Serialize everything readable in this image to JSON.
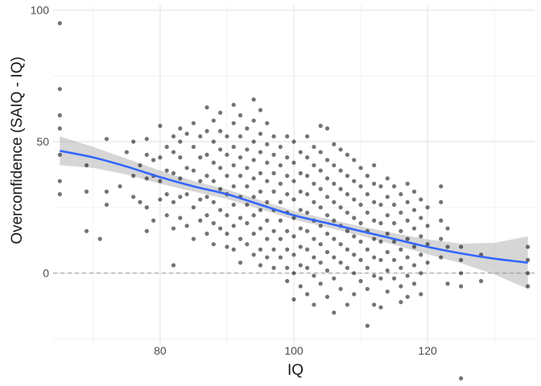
{
  "chart_data": {
    "type": "scatter",
    "title": "",
    "xlabel": "IQ",
    "ylabel": "Overconfidence (SAIQ - IQ)",
    "xlim": [
      64,
      136
    ],
    "ylim": [
      -27,
      102
    ],
    "x_ticks": [
      80,
      100,
      120
    ],
    "x_tick_labels": [
      "80",
      "100",
      "120"
    ],
    "y_ticks": [
      0,
      50,
      100
    ],
    "y_tick_labels": [
      "0",
      "50",
      "100"
    ],
    "grid": true,
    "reference_line": {
      "y": 0,
      "style": "dashed"
    },
    "point_color": "#000000",
    "point_opacity": 0.55,
    "smooth_line_color": "#3366FF",
    "ribbon_color": "#999999",
    "points": [
      [
        65,
        95
      ],
      [
        65,
        70
      ],
      [
        65,
        60
      ],
      [
        65,
        55
      ],
      [
        65,
        45
      ],
      [
        65,
        35
      ],
      [
        65,
        30
      ],
      [
        69,
        41
      ],
      [
        69,
        31
      ],
      [
        69,
        16
      ],
      [
        71,
        13
      ],
      [
        72,
        51
      ],
      [
        72,
        31
      ],
      [
        72,
        26
      ],
      [
        74,
        33
      ],
      [
        75,
        46
      ],
      [
        76,
        50
      ],
      [
        76,
        37
      ],
      [
        76,
        29
      ],
      [
        77,
        41
      ],
      [
        77,
        27
      ],
      [
        78,
        51
      ],
      [
        78,
        45
      ],
      [
        78,
        36
      ],
      [
        78,
        25
      ],
      [
        78,
        16
      ],
      [
        79,
        43
      ],
      [
        79,
        37
      ],
      [
        79,
        20
      ],
      [
        80,
        56
      ],
      [
        80,
        44
      ],
      [
        80,
        35
      ],
      [
        80,
        28
      ],
      [
        81,
        48
      ],
      [
        81,
        39
      ],
      [
        81,
        30
      ],
      [
        81,
        22
      ],
      [
        82,
        52
      ],
      [
        82,
        46
      ],
      [
        82,
        38
      ],
      [
        82,
        27
      ],
      [
        82,
        17
      ],
      [
        82,
        3
      ],
      [
        83,
        55
      ],
      [
        83,
        50
      ],
      [
        83,
        44
      ],
      [
        83,
        36
      ],
      [
        83,
        29
      ],
      [
        83,
        21
      ],
      [
        84,
        53
      ],
      [
        84,
        40
      ],
      [
        84,
        30
      ],
      [
        84,
        18
      ],
      [
        85,
        57
      ],
      [
        85,
        48
      ],
      [
        85,
        39
      ],
      [
        85,
        25
      ],
      [
        85,
        13
      ],
      [
        86,
        52
      ],
      [
        86,
        44
      ],
      [
        86,
        35
      ],
      [
        86,
        28
      ],
      [
        86,
        20
      ],
      [
        87,
        63
      ],
      [
        87,
        54
      ],
      [
        87,
        45
      ],
      [
        87,
        37
      ],
      [
        87,
        29
      ],
      [
        87,
        22
      ],
      [
        87,
        15
      ],
      [
        88,
        58
      ],
      [
        88,
        50
      ],
      [
        88,
        42
      ],
      [
        88,
        35
      ],
      [
        88,
        27
      ],
      [
        88,
        19
      ],
      [
        88,
        11
      ],
      [
        89,
        61
      ],
      [
        89,
        54
      ],
      [
        89,
        47
      ],
      [
        89,
        40
      ],
      [
        89,
        32
      ],
      [
        89,
        24
      ],
      [
        89,
        17
      ],
      [
        90,
        52
      ],
      [
        90,
        45
      ],
      [
        90,
        37
      ],
      [
        90,
        30
      ],
      [
        90,
        22
      ],
      [
        90,
        15
      ],
      [
        90,
        10
      ],
      [
        91,
        64
      ],
      [
        91,
        57
      ],
      [
        91,
        48
      ],
      [
        91,
        41
      ],
      [
        91,
        33
      ],
      [
        91,
        26
      ],
      [
        91,
        18
      ],
      [
        91,
        9
      ],
      [
        92,
        60
      ],
      [
        92,
        52
      ],
      [
        92,
        44
      ],
      [
        92,
        37
      ],
      [
        92,
        29
      ],
      [
        92,
        21
      ],
      [
        92,
        13
      ],
      [
        92,
        4
      ],
      [
        93,
        55
      ],
      [
        93,
        47
      ],
      [
        93,
        40
      ],
      [
        93,
        33
      ],
      [
        93,
        26
      ],
      [
        93,
        19
      ],
      [
        93,
        11
      ],
      [
        94,
        66
      ],
      [
        94,
        58
      ],
      [
        94,
        50
      ],
      [
        94,
        43
      ],
      [
        94,
        36
      ],
      [
        94,
        29
      ],
      [
        94,
        22
      ],
      [
        94,
        15
      ],
      [
        94,
        7
      ],
      [
        95,
        62
      ],
      [
        95,
        53
      ],
      [
        95,
        46
      ],
      [
        95,
        38
      ],
      [
        95,
        31
      ],
      [
        95,
        24
      ],
      [
        95,
        17
      ],
      [
        95,
        9
      ],
      [
        95,
        3
      ],
      [
        96,
        57
      ],
      [
        96,
        49
      ],
      [
        96,
        42
      ],
      [
        96,
        35
      ],
      [
        96,
        27
      ],
      [
        96,
        20
      ],
      [
        96,
        13
      ],
      [
        96,
        6
      ],
      [
        97,
        52
      ],
      [
        97,
        45
      ],
      [
        97,
        38
      ],
      [
        97,
        31
      ],
      [
        97,
        24
      ],
      [
        97,
        16
      ],
      [
        97,
        9
      ],
      [
        97,
        2
      ],
      [
        98,
        48
      ],
      [
        98,
        41
      ],
      [
        98,
        34
      ],
      [
        98,
        27
      ],
      [
        98,
        20
      ],
      [
        98,
        13
      ],
      [
        98,
        6
      ],
      [
        99,
        52
      ],
      [
        99,
        44
      ],
      [
        99,
        37
      ],
      [
        99,
        30
      ],
      [
        99,
        23
      ],
      [
        99,
        16
      ],
      [
        99,
        9
      ],
      [
        99,
        2
      ],
      [
        99,
        -3
      ],
      [
        100,
        50
      ],
      [
        100,
        42
      ],
      [
        100,
        35
      ],
      [
        100,
        28
      ],
      [
        100,
        21
      ],
      [
        100,
        14
      ],
      [
        100,
        7
      ],
      [
        100,
        0
      ],
      [
        100,
        -10
      ],
      [
        101,
        46
      ],
      [
        101,
        38
      ],
      [
        101,
        31
      ],
      [
        101,
        24
      ],
      [
        101,
        17
      ],
      [
        101,
        10
      ],
      [
        101,
        3
      ],
      [
        101,
        -5
      ],
      [
        102,
        52
      ],
      [
        102,
        44
      ],
      [
        102,
        37
      ],
      [
        102,
        30
      ],
      [
        102,
        23
      ],
      [
        102,
        16
      ],
      [
        102,
        9
      ],
      [
        102,
        2
      ],
      [
        102,
        -8
      ],
      [
        103,
        48
      ],
      [
        103,
        41
      ],
      [
        103,
        34
      ],
      [
        103,
        27
      ],
      [
        103,
        20
      ],
      [
        103,
        13
      ],
      [
        103,
        6
      ],
      [
        103,
        -1
      ],
      [
        103,
        -12
      ],
      [
        104,
        56
      ],
      [
        104,
        46
      ],
      [
        104,
        39
      ],
      [
        104,
        32
      ],
      [
        104,
        25
      ],
      [
        104,
        18
      ],
      [
        104,
        11
      ],
      [
        104,
        4
      ],
      [
        104,
        -4
      ],
      [
        105,
        55
      ],
      [
        105,
        43
      ],
      [
        105,
        36
      ],
      [
        105,
        29
      ],
      [
        105,
        22
      ],
      [
        105,
        15
      ],
      [
        105,
        8
      ],
      [
        105,
        1
      ],
      [
        105,
        -9
      ],
      [
        106,
        49
      ],
      [
        106,
        41
      ],
      [
        106,
        34
      ],
      [
        106,
        27
      ],
      [
        106,
        20
      ],
      [
        106,
        13
      ],
      [
        106,
        6
      ],
      [
        106,
        -2
      ],
      [
        106,
        -15
      ],
      [
        107,
        47
      ],
      [
        107,
        39
      ],
      [
        107,
        32
      ],
      [
        107,
        25
      ],
      [
        107,
        18
      ],
      [
        107,
        11
      ],
      [
        107,
        4
      ],
      [
        107,
        -6
      ],
      [
        108,
        45
      ],
      [
        108,
        37
      ],
      [
        108,
        30
      ],
      [
        108,
        23
      ],
      [
        108,
        16
      ],
      [
        108,
        9
      ],
      [
        108,
        2
      ],
      [
        108,
        -12
      ],
      [
        109,
        43
      ],
      [
        109,
        35
      ],
      [
        109,
        28
      ],
      [
        109,
        21
      ],
      [
        109,
        14
      ],
      [
        109,
        7
      ],
      [
        109,
        0
      ],
      [
        109,
        -8
      ],
      [
        110,
        40
      ],
      [
        110,
        33
      ],
      [
        110,
        26
      ],
      [
        110,
        19
      ],
      [
        110,
        12
      ],
      [
        110,
        5
      ],
      [
        110,
        -3
      ],
      [
        111,
        37
      ],
      [
        111,
        30
      ],
      [
        111,
        23
      ],
      [
        111,
        16
      ],
      [
        111,
        9
      ],
      [
        111,
        2
      ],
      [
        111,
        -6
      ],
      [
        111,
        -20
      ],
      [
        112,
        41
      ],
      [
        112,
        34
      ],
      [
        112,
        27
      ],
      [
        112,
        20
      ],
      [
        112,
        13
      ],
      [
        112,
        6
      ],
      [
        112,
        -1
      ],
      [
        112,
        -12
      ],
      [
        113,
        33
      ],
      [
        113,
        26
      ],
      [
        113,
        19
      ],
      [
        113,
        12
      ],
      [
        113,
        5
      ],
      [
        113,
        -2
      ],
      [
        113,
        -13
      ],
      [
        114,
        36
      ],
      [
        114,
        29
      ],
      [
        114,
        22
      ],
      [
        114,
        15
      ],
      [
        114,
        8
      ],
      [
        114,
        1
      ],
      [
        114,
        -7
      ],
      [
        115,
        33
      ],
      [
        115,
        26
      ],
      [
        115,
        19
      ],
      [
        115,
        12
      ],
      [
        115,
        5
      ],
      [
        115,
        -2
      ],
      [
        116,
        30
      ],
      [
        116,
        23
      ],
      [
        116,
        16
      ],
      [
        116,
        9
      ],
      [
        116,
        2
      ],
      [
        116,
        -5
      ],
      [
        116,
        -11
      ],
      [
        117,
        34
      ],
      [
        117,
        27
      ],
      [
        117,
        20
      ],
      [
        117,
        13
      ],
      [
        117,
        6
      ],
      [
        117,
        -1
      ],
      [
        117,
        -9
      ],
      [
        118,
        31
      ],
      [
        118,
        24
      ],
      [
        118,
        17
      ],
      [
        118,
        10
      ],
      [
        118,
        3
      ],
      [
        118,
        -4
      ],
      [
        119,
        28
      ],
      [
        119,
        21
      ],
      [
        119,
        14
      ],
      [
        119,
        7
      ],
      [
        119,
        0
      ],
      [
        119,
        -8
      ],
      [
        120,
        25
      ],
      [
        120,
        18
      ],
      [
        120,
        11
      ],
      [
        120,
        4
      ],
      [
        122,
        33
      ],
      [
        122,
        27
      ],
      [
        122,
        20
      ],
      [
        122,
        13
      ],
      [
        122,
        6
      ],
      [
        123,
        17
      ],
      [
        123,
        10
      ],
      [
        123,
        -4
      ],
      [
        125,
        10
      ],
      [
        125,
        5
      ],
      [
        125,
        0
      ],
      [
        125,
        -5
      ],
      [
        125,
        -40
      ],
      [
        128,
        7
      ],
      [
        128,
        -3
      ],
      [
        135,
        10
      ],
      [
        135,
        5
      ],
      [
        135,
        0
      ],
      [
        135,
        -5
      ]
    ],
    "smooth_line": [
      [
        65,
        46.5
      ],
      [
        70,
        44
      ],
      [
        75,
        40.5
      ],
      [
        80,
        36.5
      ],
      [
        85,
        33
      ],
      [
        90,
        30
      ],
      [
        95,
        26
      ],
      [
        100,
        22
      ],
      [
        105,
        19
      ],
      [
        110,
        16
      ],
      [
        115,
        13
      ],
      [
        120,
        10
      ],
      [
        125,
        7.5
      ],
      [
        130,
        5.5
      ],
      [
        135,
        4
      ]
    ],
    "ribbon_upper": [
      [
        65,
        52
      ],
      [
        70,
        48
      ],
      [
        75,
        43.5
      ],
      [
        80,
        39
      ],
      [
        85,
        35
      ],
      [
        90,
        31.8
      ],
      [
        95,
        27.7
      ],
      [
        100,
        23.6
      ],
      [
        105,
        20.6
      ],
      [
        110,
        17.8
      ],
      [
        115,
        15.2
      ],
      [
        120,
        12.8
      ],
      [
        125,
        11.2
      ],
      [
        130,
        11.5
      ],
      [
        135,
        14
      ]
    ],
    "ribbon_lower": [
      [
        65,
        41
      ],
      [
        70,
        40
      ],
      [
        75,
        37.5
      ],
      [
        80,
        34
      ],
      [
        85,
        31
      ],
      [
        90,
        28.2
      ],
      [
        95,
        24.3
      ],
      [
        100,
        20.4
      ],
      [
        105,
        17.4
      ],
      [
        110,
        14.2
      ],
      [
        115,
        10.8
      ],
      [
        120,
        7.2
      ],
      [
        125,
        3.8
      ],
      [
        130,
        -0.5
      ],
      [
        135,
        -6
      ]
    ]
  }
}
